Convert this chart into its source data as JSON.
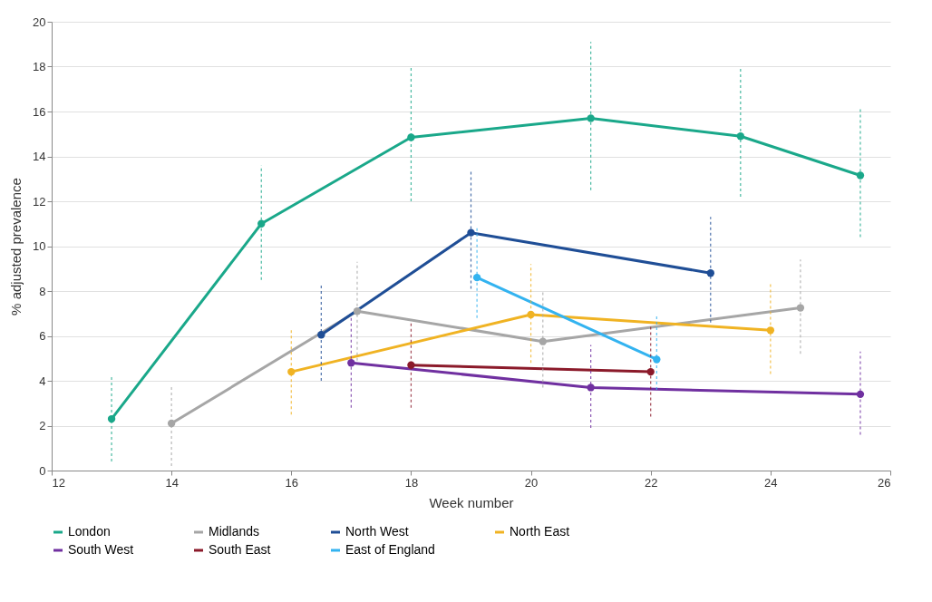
{
  "chart_data": {
    "type": "line",
    "xlabel": "Week number",
    "ylabel": "% adjusted prevalence",
    "xlim": [
      12,
      26
    ],
    "xticks": [
      12,
      14,
      16,
      18,
      20,
      22,
      24,
      26
    ],
    "ylim": [
      0,
      20
    ],
    "yticks": [
      0,
      2,
      4,
      6,
      8,
      10,
      12,
      14,
      16,
      18,
      20
    ],
    "grid": "y",
    "legend": "bottom",
    "marker": "circle",
    "line_style": "solid",
    "series": [
      {
        "name": "London",
        "color": "#1aa88a",
        "x": [
          13,
          15.5,
          18,
          21,
          23.5,
          25.5
        ],
        "values": [
          2.3,
          11.0,
          14.85,
          15.7,
          14.9,
          13.15
        ],
        "errors": [
          [
            0.4,
            4.2
          ],
          [
            8.5,
            13.6
          ],
          [
            12.0,
            18.0
          ],
          [
            12.5,
            19.1
          ],
          [
            12.2,
            17.9
          ],
          [
            10.4,
            16.2
          ]
        ]
      },
      {
        "name": "Midlands",
        "color": "#a6a6a6",
        "x": [
          14,
          17.1,
          20.2,
          24.5
        ],
        "values": [
          2.1,
          7.1,
          5.75,
          7.25
        ],
        "errors": [
          [
            0.2,
            3.8
          ],
          [
            4.9,
            9.3
          ],
          [
            3.7,
            8.0
          ],
          [
            5.2,
            9.4
          ]
        ]
      },
      {
        "name": "North West",
        "color": "#1f4e96",
        "x": [
          16.5,
          19,
          23
        ],
        "values": [
          6.05,
          10.6,
          8.8
        ],
        "errors": [
          [
            4.0,
            8.3
          ],
          [
            8.1,
            13.4
          ],
          [
            6.6,
            11.3
          ]
        ]
      },
      {
        "name": "North East",
        "color": "#f0b323",
        "x": [
          16,
          20,
          24
        ],
        "values": [
          4.4,
          6.95,
          6.25
        ],
        "errors": [
          [
            2.5,
            6.3
          ],
          [
            4.8,
            9.2
          ],
          [
            4.3,
            8.4
          ]
        ]
      },
      {
        "name": "South West",
        "color": "#7030a0",
        "x": [
          17,
          21,
          25.5
        ],
        "values": [
          4.8,
          3.7,
          3.4
        ],
        "errors": [
          [
            2.8,
            6.9
          ],
          [
            1.9,
            5.6
          ],
          [
            1.6,
            5.3
          ]
        ]
      },
      {
        "name": "South East",
        "color": "#8b1a2a",
        "x": [
          18,
          22
        ],
        "values": [
          4.7,
          4.4
        ],
        "errors": [
          [
            2.8,
            6.6
          ],
          [
            2.4,
            6.4
          ]
        ]
      },
      {
        "name": "East of England",
        "color": "#33b3f0",
        "x": [
          19.1,
          22.1
        ],
        "values": [
          8.6,
          4.95
        ],
        "errors": [
          [
            6.8,
            10.9
          ],
          [
            3.6,
            6.9
          ]
        ]
      }
    ]
  }
}
